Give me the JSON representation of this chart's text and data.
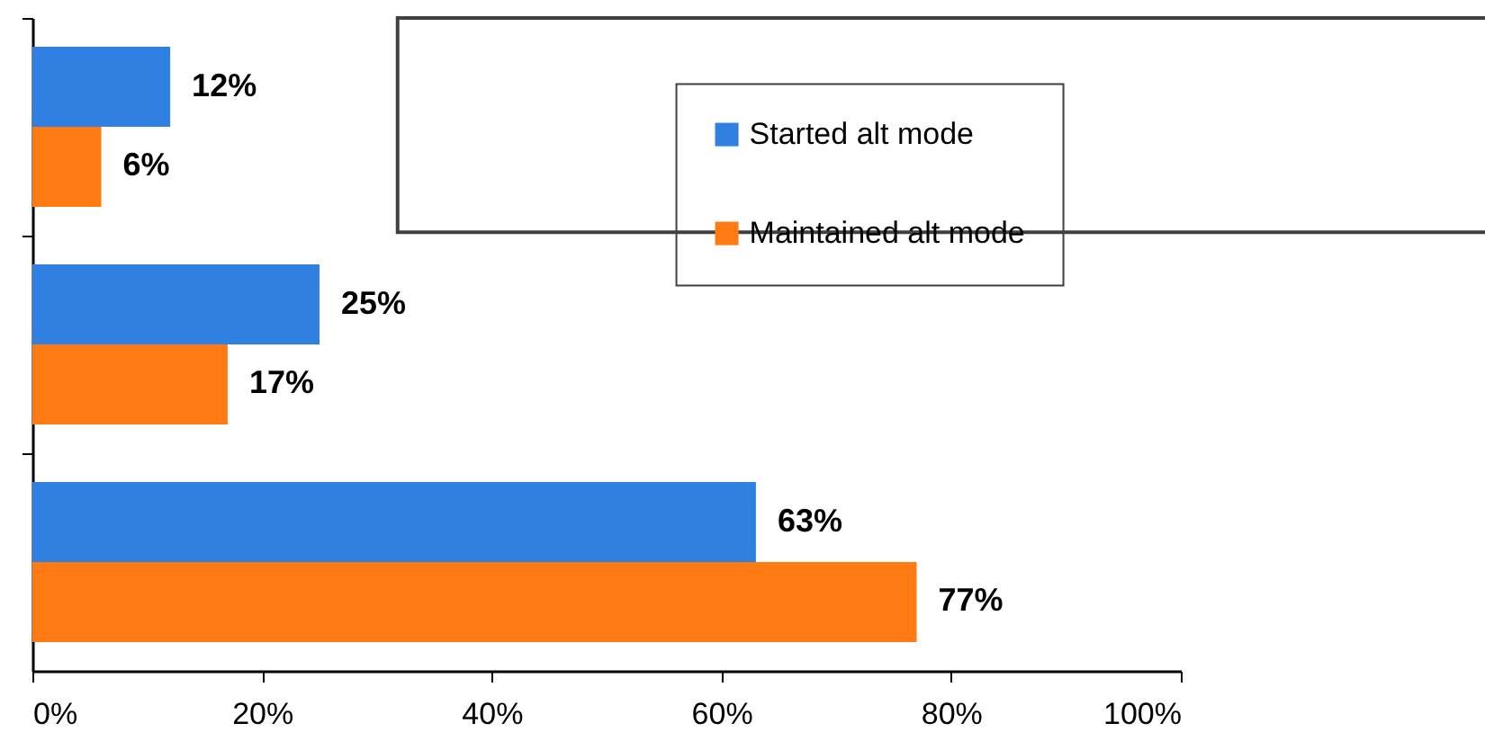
{
  "chart_data": {
    "type": "bar",
    "orientation": "horizontal",
    "categories": [
      null,
      null,
      null
    ],
    "series": [
      {
        "name": "Started alt mode",
        "color": "#2f80e0",
        "values": [
          12,
          25,
          63
        ],
        "value_labels": [
          "12%",
          "25%",
          "63%"
        ]
      },
      {
        "name": "Maintained alt mode",
        "color": "#ff7a12",
        "values": [
          6,
          17,
          77
        ],
        "value_labels": [
          "6%",
          "17%",
          "77%"
        ]
      }
    ],
    "xlim": [
      0,
      100
    ],
    "xticks": [
      {
        "value": 0,
        "label": "0%"
      },
      {
        "value": 20,
        "label": "20%"
      },
      {
        "value": 40,
        "label": "40%"
      },
      {
        "value": 60,
        "label": "60%"
      },
      {
        "value": 80,
        "label": "80%"
      },
      {
        "value": 100,
        "label": "100%"
      }
    ],
    "legend": "top right",
    "grid": false,
    "tick_labels": "x"
  }
}
